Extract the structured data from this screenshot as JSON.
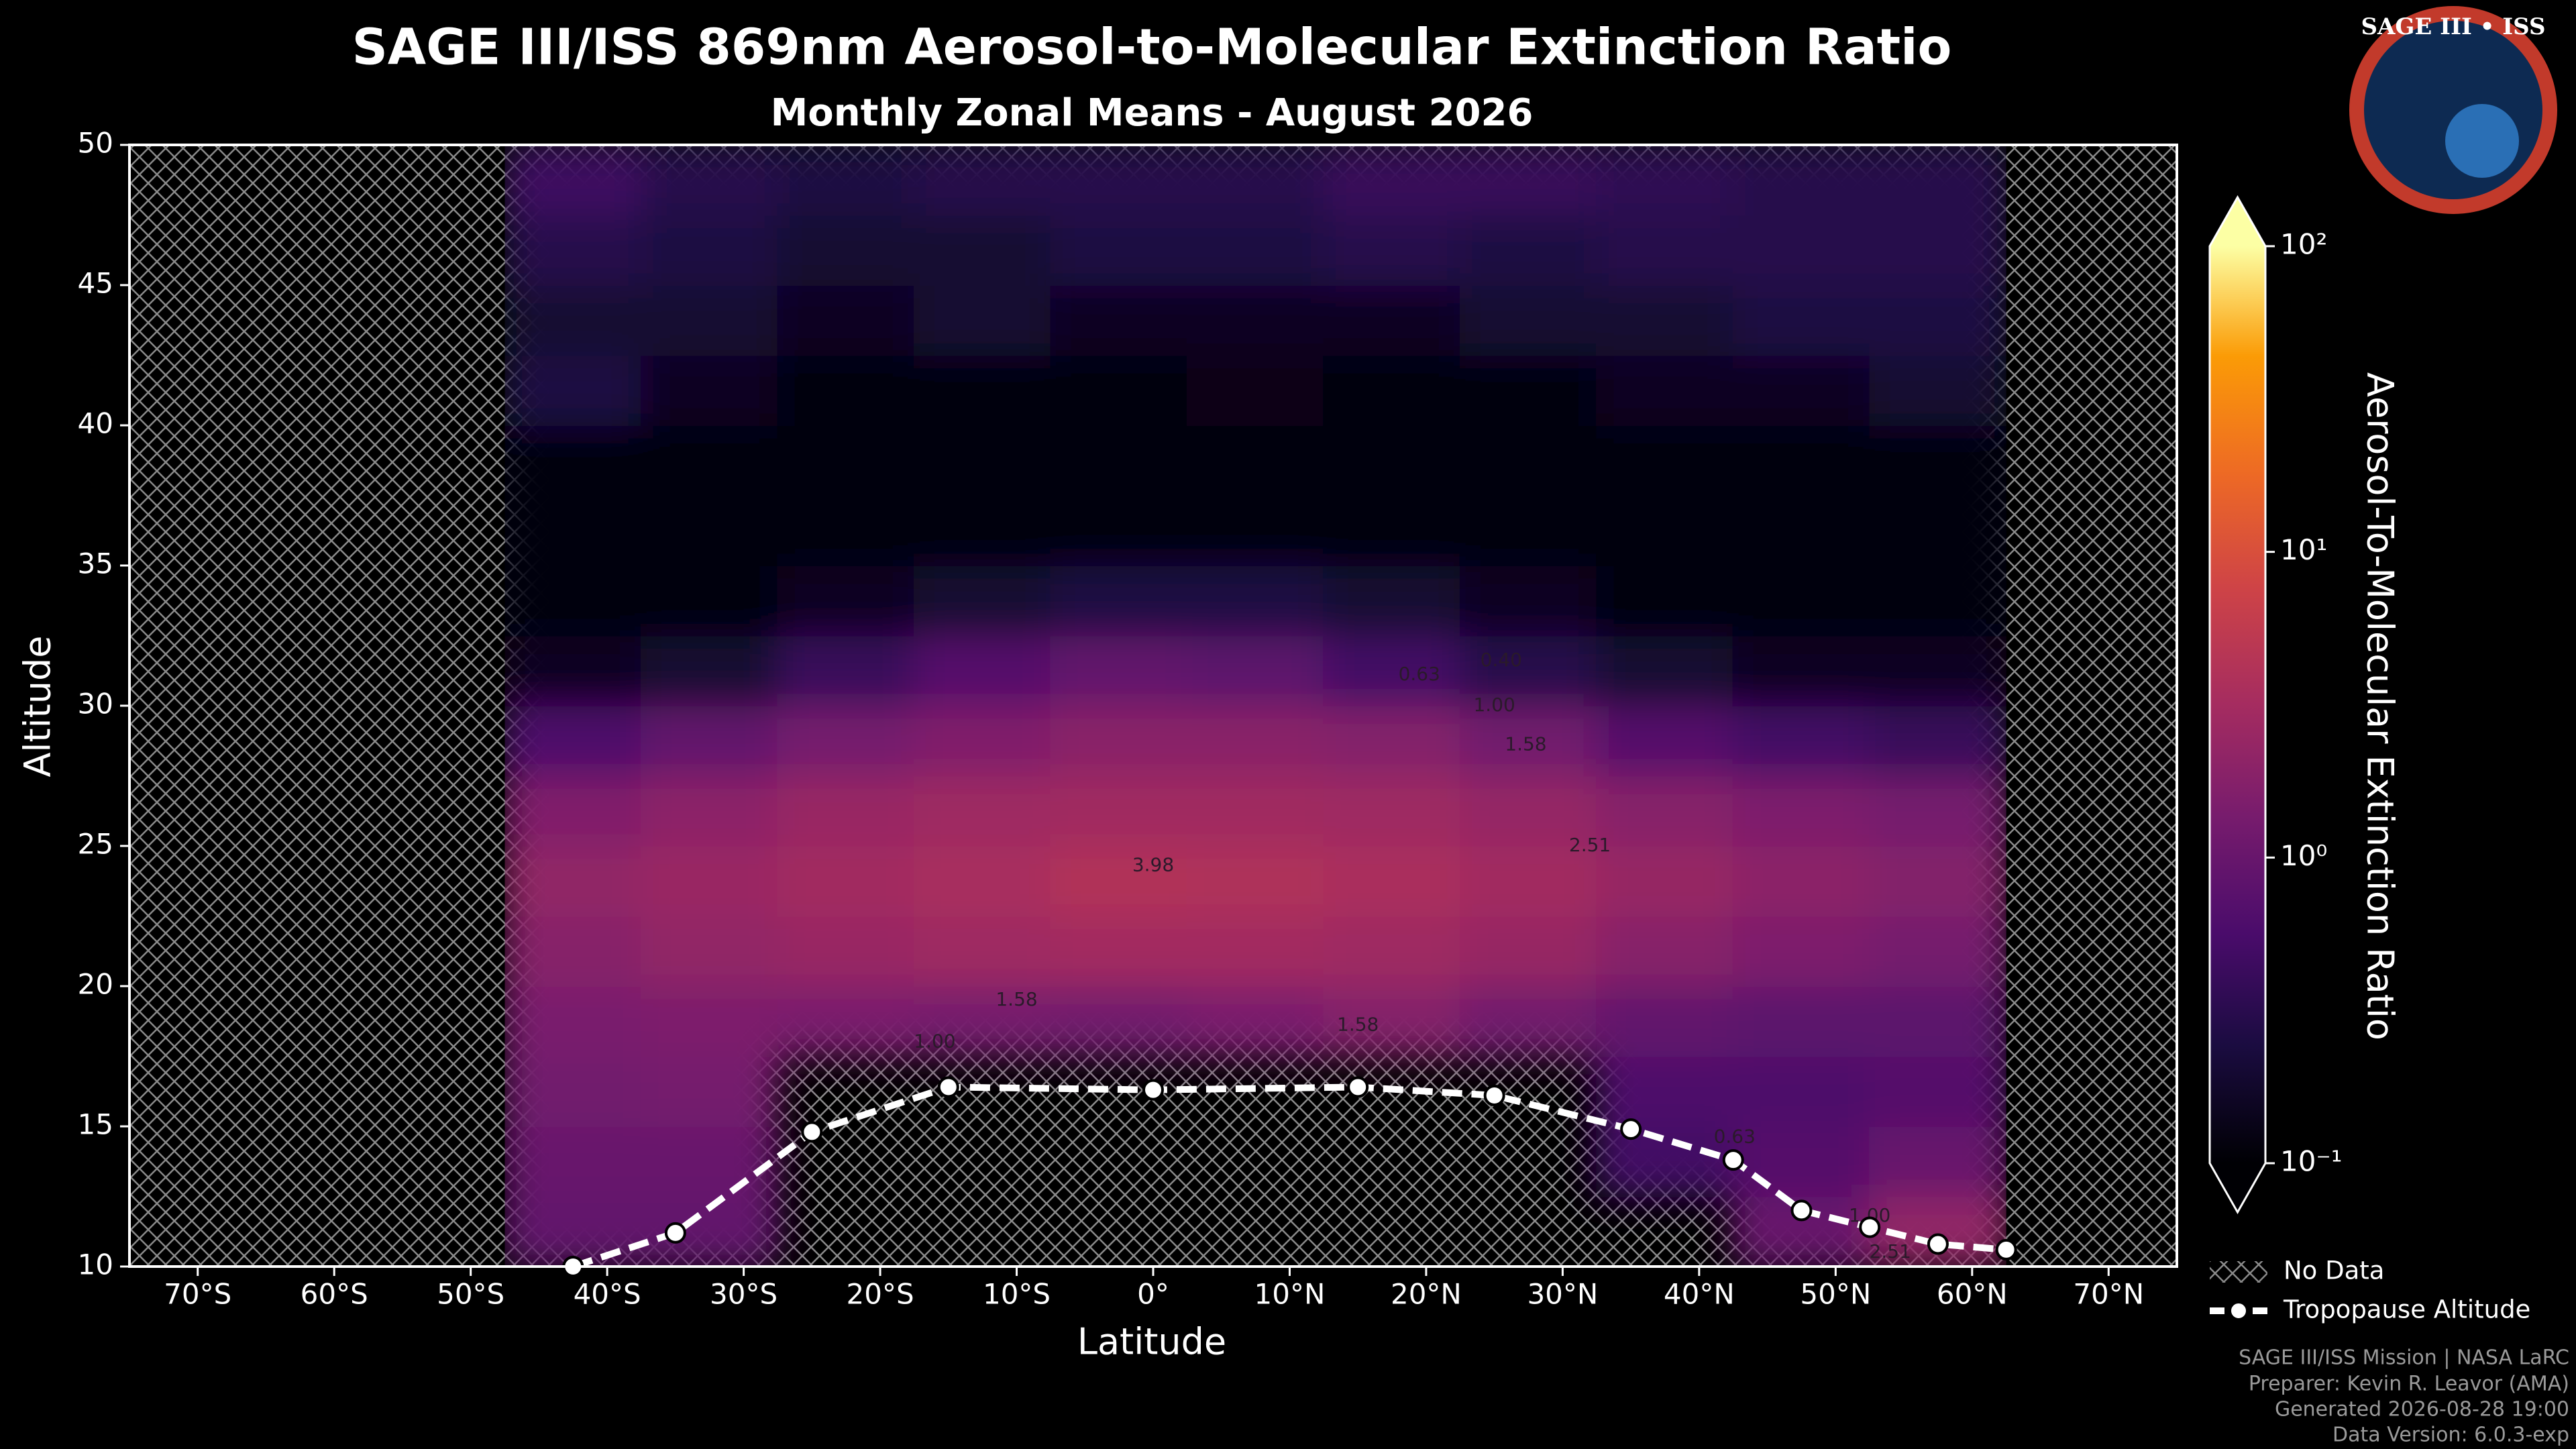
{
  "chart_data": {
    "type": "heatmap",
    "title": "SAGE III/ISS 869nm Aerosol-to-Molecular Extinction Ratio",
    "subtitle": "Monthly Zonal Means - August 2026",
    "x_label": "Latitude",
    "y_label": "Altitude",
    "xlim": [
      -75,
      75
    ],
    "ylim": [
      10,
      50
    ],
    "xticks": [
      {
        "value": -70,
        "label": "70°S"
      },
      {
        "value": -60,
        "label": "60°S"
      },
      {
        "value": -50,
        "label": "50°S"
      },
      {
        "value": -40,
        "label": "40°S"
      },
      {
        "value": -30,
        "label": "30°S"
      },
      {
        "value": -20,
        "label": "20°S"
      },
      {
        "value": -10,
        "label": "10°S"
      },
      {
        "value": 0,
        "label": "0°"
      },
      {
        "value": 10,
        "label": "10°N"
      },
      {
        "value": 20,
        "label": "20°N"
      },
      {
        "value": 30,
        "label": "30°N"
      },
      {
        "value": 40,
        "label": "40°N"
      },
      {
        "value": 50,
        "label": "50°N"
      },
      {
        "value": 60,
        "label": "60°N"
      },
      {
        "value": 70,
        "label": "70°N"
      }
    ],
    "yticks": [
      10,
      15,
      20,
      25,
      30,
      35,
      40,
      45,
      50
    ],
    "colormap": "inferno",
    "color_scale": "log",
    "colorbar_label": "Aerosol-To-Molecular Extinction Ratio",
    "colorbar_lim": [
      0.1,
      100
    ],
    "colorbar_ticks": [
      {
        "value": 0.1,
        "label": "10⁻¹"
      },
      {
        "value": 1,
        "label": "10⁰"
      },
      {
        "value": 10,
        "label": "10¹"
      },
      {
        "value": 100,
        "label": "10²"
      }
    ],
    "lat_edges": [
      -47.5,
      -37.5,
      -27.5,
      -17.5,
      -7.5,
      2.5,
      12.5,
      22.5,
      32.5,
      42.5,
      52.5,
      62.5
    ],
    "alt_edges": [
      10,
      12.5,
      15,
      17.5,
      20,
      22.5,
      25,
      27.5,
      30,
      32.5,
      35,
      37.5,
      40,
      42.5,
      45,
      47.5,
      50
    ],
    "z": [
      [
        0.9,
        0.9,
        null,
        null,
        null,
        null,
        null,
        null,
        null,
        1.0,
        2.2
      ],
      [
        1.0,
        1.0,
        null,
        null,
        null,
        null,
        null,
        null,
        0.5,
        0.7,
        1.0
      ],
      [
        1.2,
        1.3,
        null,
        null,
        null,
        null,
        null,
        null,
        0.6,
        0.6,
        0.7
      ],
      [
        1.4,
        1.5,
        1.4,
        1.3,
        1.2,
        1.4,
        1.7,
        1.2,
        0.9,
        0.8,
        0.8
      ],
      [
        1.8,
        2.2,
        2.5,
        2.8,
        3.0,
        3.0,
        2.8,
        2.4,
        1.8,
        1.5,
        1.3
      ],
      [
        2.2,
        2.6,
        3.0,
        3.4,
        4.1,
        3.9,
        3.5,
        3.0,
        2.4,
        2.0,
        1.7
      ],
      [
        1.6,
        2.0,
        2.5,
        2.8,
        2.9,
        2.9,
        2.8,
        2.3,
        1.8,
        1.5,
        1.3
      ],
      [
        0.6,
        0.9,
        1.3,
        1.6,
        1.9,
        1.9,
        1.7,
        1.2,
        0.7,
        0.5,
        0.4
      ],
      [
        0.15,
        0.2,
        0.4,
        0.7,
        0.9,
        0.8,
        0.5,
        0.3,
        0.2,
        0.15,
        0.15
      ],
      [
        0.12,
        0.12,
        0.15,
        0.2,
        0.25,
        0.25,
        0.2,
        0.15,
        0.12,
        0.12,
        0.12
      ],
      [
        0.11,
        0.11,
        0.11,
        0.11,
        0.11,
        0.11,
        0.11,
        0.11,
        0.11,
        0.11,
        0.11
      ],
      [
        0.11,
        0.11,
        0.11,
        0.11,
        0.11,
        0.11,
        0.11,
        0.11,
        0.11,
        0.11,
        0.11
      ],
      [
        0.25,
        0.15,
        0.12,
        0.12,
        0.12,
        0.13,
        0.12,
        0.12,
        0.15,
        0.15,
        0.2
      ],
      [
        0.2,
        0.2,
        0.15,
        0.2,
        0.15,
        0.15,
        0.15,
        0.2,
        0.2,
        0.25,
        0.25
      ],
      [
        0.3,
        0.25,
        0.2,
        0.2,
        0.25,
        0.25,
        0.3,
        0.25,
        0.3,
        0.3,
        0.3
      ],
      [
        0.45,
        0.3,
        0.25,
        0.3,
        0.3,
        0.3,
        0.4,
        0.4,
        0.35,
        0.3,
        0.3
      ]
    ],
    "contour_labels": [
      {
        "value": 3.98,
        "label": "3.98",
        "x": 0,
        "y": 24.3
      },
      {
        "value": 2.51,
        "label": "2.51",
        "x": 32,
        "y": 25.0
      },
      {
        "value": 1.58,
        "label": "1.58",
        "x": 27.3,
        "y": 28.6
      },
      {
        "value": 1,
        "label": "1.00",
        "x": 25,
        "y": 30.0
      },
      {
        "value": 0.63,
        "label": "0.63",
        "x": 19.5,
        "y": 31.1
      },
      {
        "value": 0.4,
        "label": "0.40",
        "x": 25.5,
        "y": 31.6
      },
      {
        "value": 1.58,
        "label": "1.58",
        "x": -10,
        "y": 19.5
      },
      {
        "value": 1,
        "label": "1.00",
        "x": -16,
        "y": 18.0
      },
      {
        "value": 1.58,
        "label": "1.58",
        "x": 15,
        "y": 18.6
      },
      {
        "value": 0.63,
        "label": "0.63",
        "x": 42.6,
        "y": 14.6
      },
      {
        "value": 1,
        "label": "1.00",
        "x": 52.5,
        "y": 11.8
      },
      {
        "value": 2.51,
        "label": "2.51",
        "x": 54,
        "y": 10.5
      }
    ],
    "tropopause": {
      "name": "Tropopause Altitude",
      "color": "#ffffff",
      "x": [
        -42.5,
        -35,
        -25,
        -15,
        0,
        15,
        25,
        35,
        42.5,
        47.5,
        52.5,
        57.5,
        62.5
      ],
      "values": [
        10,
        11.2,
        14.8,
        16.4,
        16.3,
        16.4,
        16.1,
        14.9,
        13.8,
        12.0,
        11.4,
        10.8,
        10.6
      ]
    },
    "no_data_label": "No Data",
    "footer": [
      "SAGE III/ISS Mission | NASA LaRC",
      "Preparer: Kevin R. Leavor (AMA)",
      "Generated 2026-08-28 19:00",
      "Data Version: 6.0.3-exp"
    ],
    "logo": "SAGE III • ISS"
  }
}
